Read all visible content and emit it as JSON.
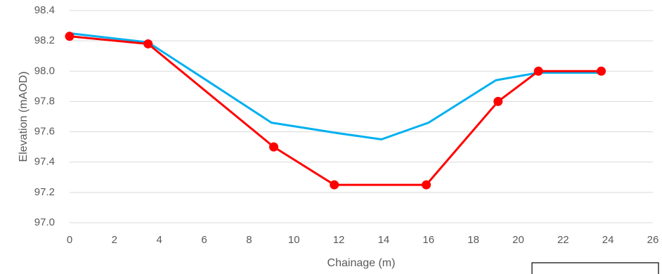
{
  "chart_data": {
    "type": "line",
    "title": "",
    "xlabel": "Chainage (m)",
    "ylabel": "Elevation (mAOD)",
    "xlim": [
      0,
      26
    ],
    "ylim": [
      97.0,
      98.4
    ],
    "x_ticks": [
      "0",
      "2",
      "4",
      "6",
      "8",
      "10",
      "12",
      "14",
      "16",
      "18",
      "20",
      "22",
      "24",
      "26"
    ],
    "y_ticks": [
      "97.0",
      "97.2",
      "97.4",
      "97.6",
      "97.8",
      "98.0",
      "98.2",
      "98.4"
    ],
    "grid": "horizontal",
    "legend": "bottom-right, entries not visible",
    "series": [
      {
        "color": "#00B0F0",
        "markers": false,
        "points": [
          [
            0,
            98.25
          ],
          [
            3.5,
            98.19
          ],
          [
            6.0,
            97.95
          ],
          [
            9.0,
            97.66
          ],
          [
            12.0,
            97.59
          ],
          [
            13.9,
            97.55
          ],
          [
            16.0,
            97.66
          ],
          [
            19.0,
            97.94
          ],
          [
            20.9,
            97.99
          ],
          [
            23.7,
            97.99
          ]
        ]
      },
      {
        "color": "#FF0000",
        "markers": true,
        "points": [
          [
            0,
            98.23
          ],
          [
            3.5,
            98.18
          ],
          [
            9.1,
            97.5
          ],
          [
            11.8,
            97.25
          ],
          [
            15.9,
            97.25
          ],
          [
            19.1,
            97.8
          ],
          [
            20.9,
            98.0
          ],
          [
            23.7,
            98.0
          ]
        ]
      }
    ]
  }
}
